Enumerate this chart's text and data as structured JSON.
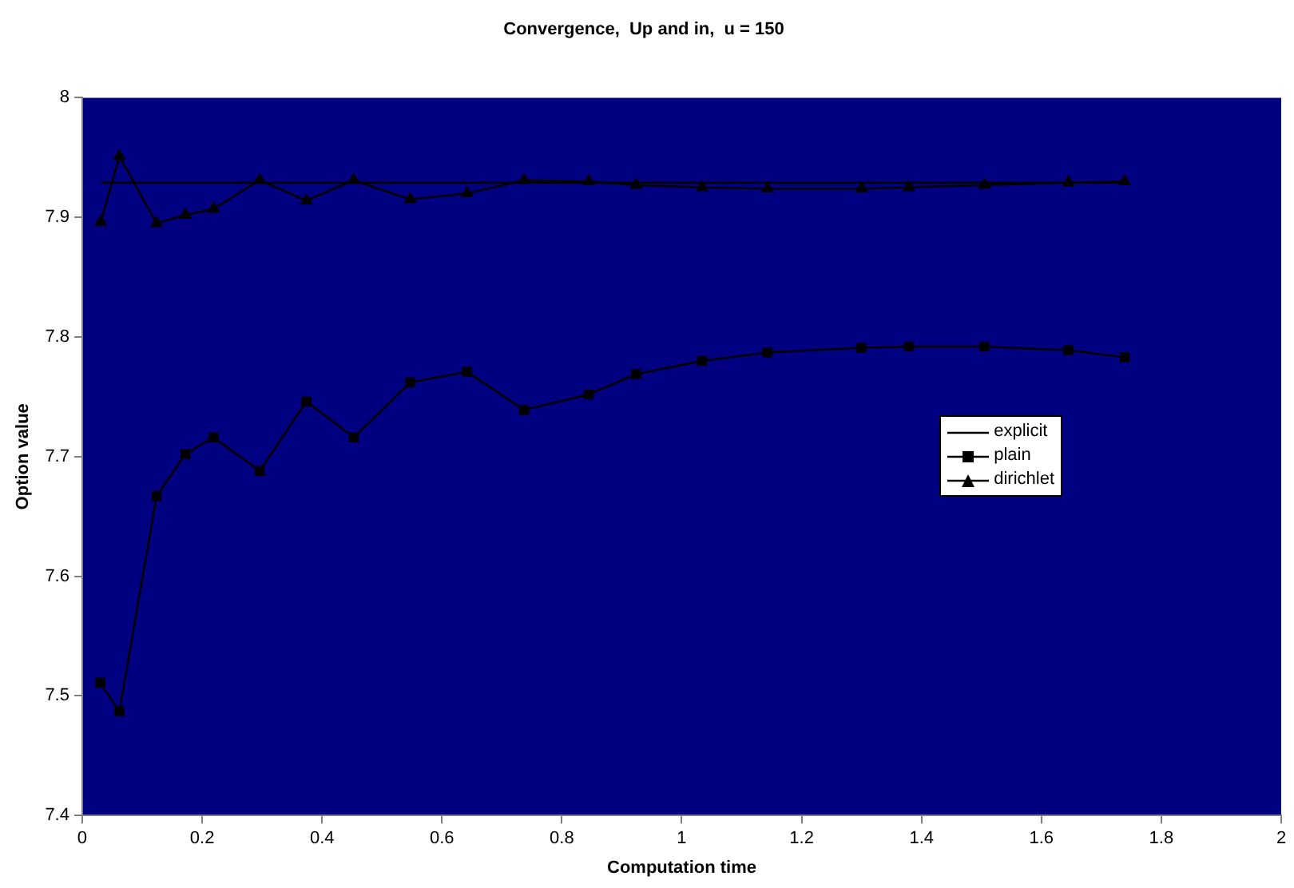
{
  "chart_data": {
    "type": "line",
    "title": "Convergence,  Up and in,  u = 150",
    "xlabel": "Computation time",
    "ylabel": "Option value",
    "xlim": [
      0,
      2
    ],
    "xticks": [
      0,
      0.2,
      0.4,
      0.6,
      0.8,
      1,
      1.2,
      1.4,
      1.6,
      1.8,
      2
    ],
    "ylim": [
      7.4,
      8
    ],
    "yticks": [
      7.4,
      7.5,
      7.6,
      7.7,
      7.8,
      7.9,
      8
    ],
    "grid": false,
    "legend": "right",
    "line_style": "solid",
    "series": [
      {
        "name": "explicit",
        "color": "#000000",
        "marker": "none",
        "x": [
          0.031,
          1.739
        ],
        "values": [
          7.929,
          7.929
        ]
      },
      {
        "name": "plain",
        "color": "#000000",
        "marker": "square",
        "x": [
          0.03,
          0.062,
          0.124,
          0.172,
          0.219,
          0.296,
          0.374,
          0.453,
          0.547,
          0.642,
          0.737,
          0.845,
          0.924,
          1.034,
          1.143,
          1.3,
          1.379,
          1.505,
          1.645,
          1.739
        ],
        "values": [
          7.511,
          7.487,
          7.667,
          7.702,
          7.716,
          7.688,
          7.746,
          7.716,
          7.762,
          7.771,
          7.739,
          7.752,
          7.769,
          7.78,
          7.787,
          7.791,
          7.792,
          7.792,
          7.789,
          7.783
        ]
      },
      {
        "name": "dirichlet",
        "color": "#000000",
        "marker": "triangle",
        "x": [
          0.031,
          0.062,
          0.124,
          0.172,
          0.219,
          0.296,
          0.374,
          0.453,
          0.547,
          0.642,
          0.737,
          0.845,
          0.924,
          1.034,
          1.143,
          1.3,
          1.379,
          1.505,
          1.645,
          1.739
        ],
        "values": [
          7.896,
          7.951,
          7.895,
          7.902,
          7.907,
          7.931,
          7.914,
          7.931,
          7.915,
          7.92,
          7.931,
          7.93,
          7.927,
          7.925,
          7.924,
          7.924,
          7.925,
          7.927,
          7.929,
          7.93
        ]
      }
    ]
  }
}
